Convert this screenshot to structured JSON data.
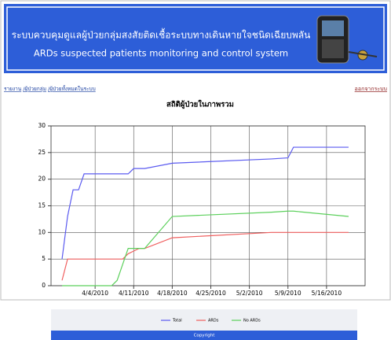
{
  "header": {
    "title_th": "ระบบควบคุมดูแลผู้ป่วยกลุ่มสงสัยติดเชื้อระบบทางเดินหายใจชนิดเฉียบพลัน",
    "title_en": "ARDs suspected patients monitoring and control system"
  },
  "breadcrumb": [
    "รายงาน",
    "/ผู้ป่วยกลุ่ม",
    "/ผู้ป่วยทั้งหมดในระบบ"
  ],
  "logout": "ออกจากระบบ",
  "chart_data": {
    "type": "line",
    "title": "สถิติผู้ป่วยในภาพรวม",
    "x": [
      "2010-03-29",
      "2010-03-30",
      "2010-03-31",
      "2010-04-01",
      "2010-04-02",
      "2010-04-07",
      "2010-04-08",
      "2010-04-09",
      "2010-04-10",
      "2010-04-11",
      "2010-04-12",
      "2010-04-13",
      "2010-04-18",
      "2010-05-06",
      "2010-05-09",
      "2010-05-10",
      "2010-05-20"
    ],
    "xlim": [
      "2010-03-27",
      "2010-05-23"
    ],
    "xticks": [
      {
        "value": "2010-04-04",
        "label": "4/4/2010"
      },
      {
        "value": "2010-04-11",
        "label": "4/11/2010"
      },
      {
        "value": "2010-04-18",
        "label": "4/18/2010"
      },
      {
        "value": "2010-04-25",
        "label": "4/25/2010"
      },
      {
        "value": "2010-05-02",
        "label": "5/2/2010"
      },
      {
        "value": "2010-05-09",
        "label": "5/9/2010"
      },
      {
        "value": "2010-05-16",
        "label": "5/16/2010"
      }
    ],
    "ylim": [
      0,
      30
    ],
    "yticks": [
      0,
      5,
      10,
      15,
      20,
      25,
      30
    ],
    "grid": true,
    "series": [
      {
        "name": "Total",
        "color": "#5b5bf0",
        "values": [
          5,
          13,
          18,
          18,
          21,
          21,
          21,
          21,
          21,
          22,
          22,
          22,
          23,
          23.8,
          24,
          26,
          26
        ]
      },
      {
        "name": "ARDs",
        "color": "#f06060",
        "values": [
          1,
          5,
          5,
          5,
          5,
          5,
          5,
          5,
          6,
          6.5,
          7,
          7,
          9,
          10,
          10,
          10,
          10
        ]
      },
      {
        "name": "No ARDs",
        "color": "#5cd05c",
        "values": [
          0,
          0,
          0,
          0,
          0,
          0,
          1,
          4,
          7,
          7,
          7,
          7,
          13,
          13.8,
          14,
          14,
          13
        ]
      }
    ]
  },
  "footer": "Copyright"
}
